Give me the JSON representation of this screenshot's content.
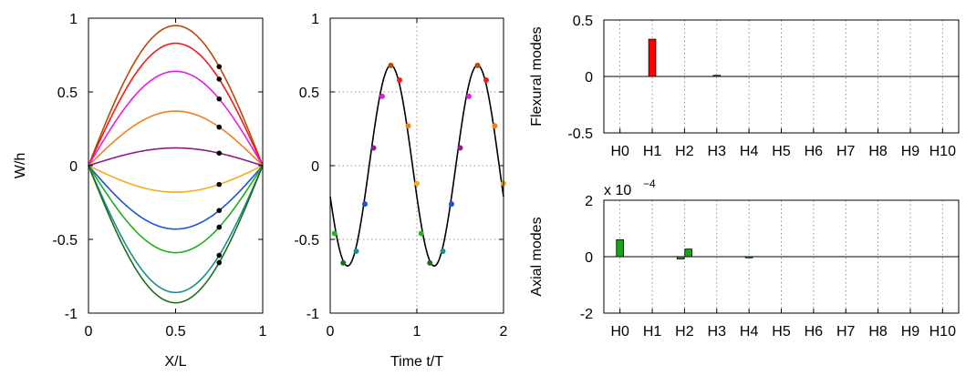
{
  "chart_data": [
    {
      "id": "mode_shapes",
      "type": "line",
      "xlabel": "X/L",
      "ylabel": "W/h",
      "xlim": [
        0,
        1
      ],
      "ylim": [
        -1,
        1
      ],
      "xticks": [
        0,
        0.5,
        1
      ],
      "yticks": [
        -1,
        -0.5,
        0,
        0.5,
        1
      ],
      "grid": false,
      "shape": "sin(pi*x/L)",
      "marker_x": 0.75,
      "series": [
        {
          "amplitude": 0.95,
          "color": "#b84a0a"
        },
        {
          "amplitude": 0.83,
          "color": "#ee1c1c"
        },
        {
          "amplitude": 0.64,
          "color": "#e81ce8"
        },
        {
          "amplitude": 0.37,
          "color": "#f0801e"
        },
        {
          "amplitude": 0.12,
          "color": "#8b1c8b"
        },
        {
          "amplitude": -0.18,
          "color": "#f7ac1e"
        },
        {
          "amplitude": -0.43,
          "color": "#1c50e0"
        },
        {
          "amplitude": -0.59,
          "color": "#1cb01c"
        },
        {
          "amplitude": -0.86,
          "color": "#1c8e8e"
        },
        {
          "amplitude": -0.93,
          "color": "#1c6e1c"
        }
      ]
    },
    {
      "id": "time_history",
      "type": "line",
      "xlabel": "Time t/T",
      "ylabel": "",
      "xlim": [
        0,
        2
      ],
      "ylim": [
        -1,
        1
      ],
      "xticks": [
        0,
        1,
        2
      ],
      "yticks": [
        -1,
        -0.5,
        0,
        0.5,
        1
      ],
      "grid": true,
      "curve": {
        "amplitude": 0.68,
        "phase_peak": 0.7,
        "color": "#000000"
      },
      "points": [
        {
          "x": 0.05,
          "y": -0.46,
          "color": "#22b522"
        },
        {
          "x": 0.15,
          "y": -0.66,
          "color": "#1c6e1c"
        },
        {
          "x": 0.3,
          "y": -0.58,
          "color": "#1c8e8e"
        },
        {
          "x": 0.4,
          "y": -0.26,
          "color": "#1c50e0"
        },
        {
          "x": 0.5,
          "y": 0.12,
          "color": "#8b1c8b"
        },
        {
          "x": 0.6,
          "y": 0.47,
          "color": "#e81ce8"
        },
        {
          "x": 0.7,
          "y": 0.68,
          "color": "#b84a0a"
        },
        {
          "x": 0.8,
          "y": 0.58,
          "color": "#ee1c1c"
        },
        {
          "x": 0.9,
          "y": 0.27,
          "color": "#f0801e"
        },
        {
          "x": 1.0,
          "y": -0.12,
          "color": "#f7ac1e"
        },
        {
          "x": 1.05,
          "y": -0.46,
          "color": "#22b522"
        },
        {
          "x": 1.15,
          "y": -0.66,
          "color": "#1c6e1c"
        },
        {
          "x": 1.3,
          "y": -0.58,
          "color": "#1c8e8e"
        },
        {
          "x": 1.4,
          "y": -0.26,
          "color": "#1c50e0"
        },
        {
          "x": 1.5,
          "y": 0.12,
          "color": "#8b1c8b"
        },
        {
          "x": 1.6,
          "y": 0.47,
          "color": "#e81ce8"
        },
        {
          "x": 1.7,
          "y": 0.68,
          "color": "#b84a0a"
        },
        {
          "x": 1.8,
          "y": 0.58,
          "color": "#ee1c1c"
        },
        {
          "x": 1.9,
          "y": 0.27,
          "color": "#f0801e"
        },
        {
          "x": 2.0,
          "y": -0.12,
          "color": "#f7ac1e"
        }
      ]
    },
    {
      "id": "flexural_modes",
      "type": "bar",
      "ylabel": "Flexural modes",
      "categories": [
        "H0",
        "H1",
        "H2",
        "H3",
        "H4",
        "H5",
        "H6",
        "H7",
        "H8",
        "H9",
        "H10"
      ],
      "ylim": [
        -0.5,
        0.5
      ],
      "yticks": [
        "-0.5",
        "0",
        "0.5"
      ],
      "grid": true,
      "bars": [
        {
          "category": "H1",
          "value": 0.33,
          "color": "#ff0000"
        },
        {
          "category": "H3",
          "value": 0.01,
          "color": "#ff0000"
        }
      ]
    },
    {
      "id": "axial_modes",
      "type": "bar",
      "ylabel": "Axial modes",
      "exponent_label": "x 10",
      "exponent": "−4",
      "categories": [
        "H0",
        "H1",
        "H2",
        "H3",
        "H4",
        "H5",
        "H6",
        "H7",
        "H8",
        "H9",
        "H10"
      ],
      "ylim": [
        -2,
        2
      ],
      "yticks": [
        "-2",
        "0",
        "2"
      ],
      "grid": true,
      "bars": [
        {
          "category": "H0",
          "value": 0.6,
          "color": "#1fa01f"
        },
        {
          "category": "H2",
          "value": -0.08,
          "color": "#1fa01f",
          "offset": -0.12
        },
        {
          "category": "H2",
          "value": 0.27,
          "color": "#1fa01f",
          "offset": 0.12
        },
        {
          "category": "H4",
          "value": -0.04,
          "color": "#1fa01f"
        }
      ]
    }
  ]
}
